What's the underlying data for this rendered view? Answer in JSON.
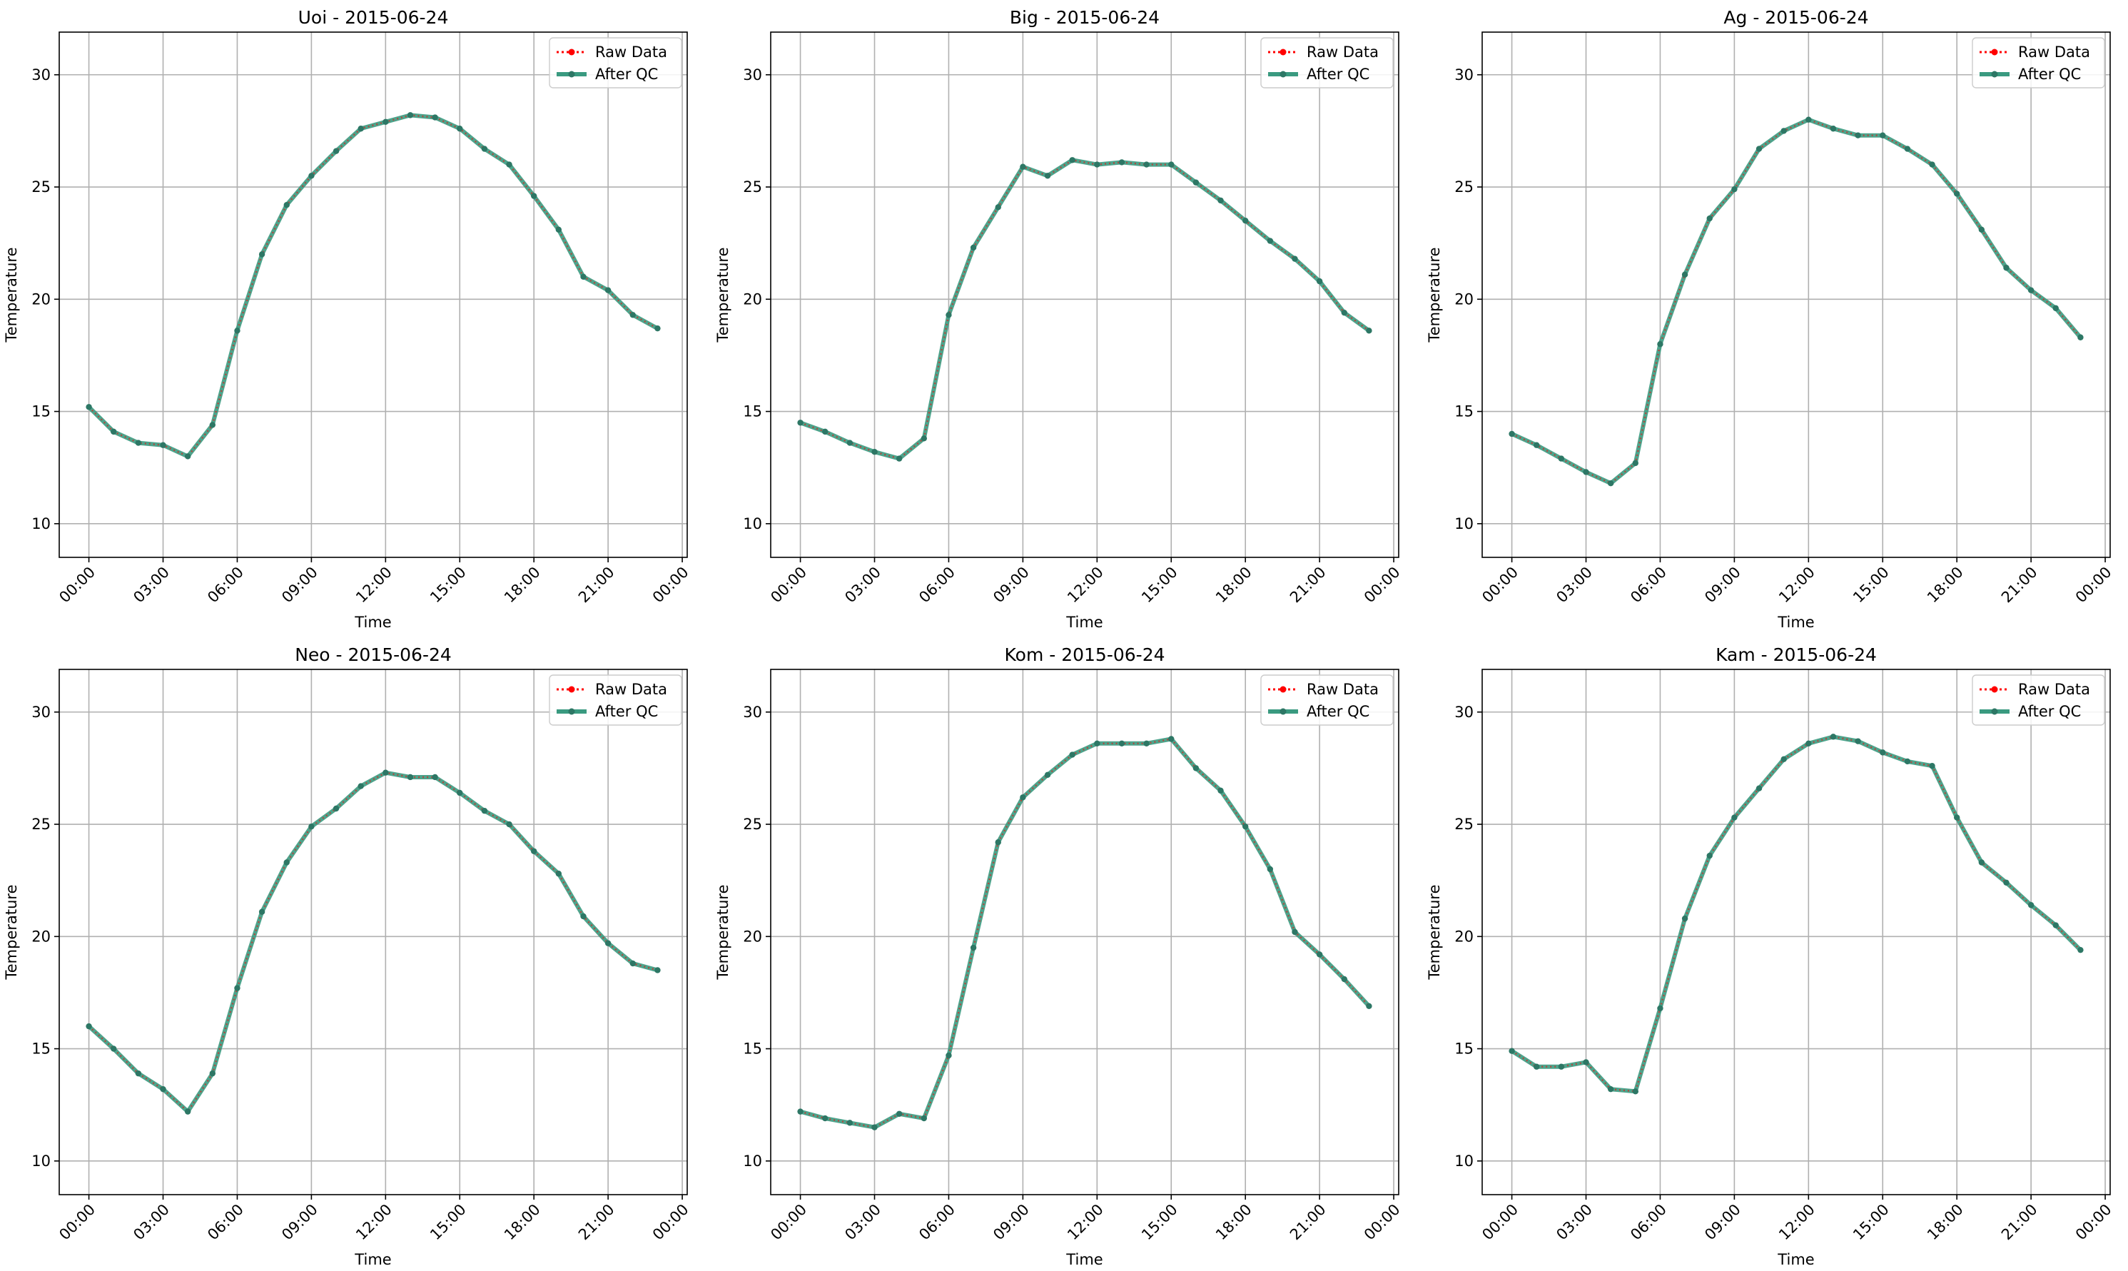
{
  "chart_data": [
    {
      "type": "line",
      "title": "Uoi - 2015-06-24",
      "xlabel": "Time",
      "ylabel": "Temperature",
      "ylim": [
        8.5,
        31.9
      ],
      "yticks": [
        10,
        15,
        20,
        25,
        30
      ],
      "xticks": [
        "00:00",
        "03:00",
        "06:00",
        "09:00",
        "12:00",
        "15:00",
        "18:00",
        "21:00",
        "00:00"
      ],
      "x": [
        "00:00",
        "01:00",
        "02:00",
        "03:00",
        "04:00",
        "05:00",
        "06:00",
        "07:00",
        "08:00",
        "09:00",
        "10:00",
        "11:00",
        "12:00",
        "13:00",
        "14:00",
        "15:00",
        "16:00",
        "17:00",
        "18:00",
        "19:00",
        "20:00",
        "21:00",
        "22:00",
        "23:00"
      ],
      "grid": true,
      "legend": "top-right",
      "series": [
        {
          "name": "Raw Data",
          "values": [
            15.2,
            14.1,
            13.6,
            13.5,
            13.0,
            14.4,
            18.6,
            22.0,
            24.2,
            25.5,
            26.6,
            27.6,
            27.9,
            28.2,
            28.1,
            27.6,
            26.7,
            26.0,
            24.6,
            23.1,
            21.0,
            20.4,
            19.3,
            18.7
          ]
        },
        {
          "name": "After QC",
          "values": [
            15.2,
            14.1,
            13.6,
            13.5,
            13.0,
            14.4,
            18.6,
            22.0,
            24.2,
            25.5,
            26.6,
            27.6,
            27.9,
            28.2,
            28.1,
            27.6,
            26.7,
            26.0,
            24.6,
            23.1,
            21.0,
            20.4,
            19.3,
            18.7
          ]
        }
      ]
    },
    {
      "type": "line",
      "title": "Big - 2015-06-24",
      "xlabel": "Time",
      "ylabel": "Temperature",
      "ylim": [
        8.5,
        31.9
      ],
      "yticks": [
        10,
        15,
        20,
        25,
        30
      ],
      "xticks": [
        "00:00",
        "03:00",
        "06:00",
        "09:00",
        "12:00",
        "15:00",
        "18:00",
        "21:00",
        "00:00"
      ],
      "x": [
        "00:00",
        "01:00",
        "02:00",
        "03:00",
        "04:00",
        "05:00",
        "06:00",
        "07:00",
        "08:00",
        "09:00",
        "10:00",
        "11:00",
        "12:00",
        "13:00",
        "14:00",
        "15:00",
        "16:00",
        "17:00",
        "18:00",
        "19:00",
        "20:00",
        "21:00",
        "22:00",
        "23:00"
      ],
      "grid": true,
      "legend": "top-right",
      "series": [
        {
          "name": "Raw Data",
          "values": [
            14.5,
            14.1,
            13.6,
            13.2,
            12.9,
            13.8,
            19.3,
            22.3,
            24.1,
            25.9,
            25.5,
            26.2,
            26.0,
            26.1,
            26.0,
            26.0,
            25.2,
            24.4,
            23.5,
            22.6,
            21.8,
            20.8,
            19.4,
            18.6
          ]
        },
        {
          "name": "After QC",
          "values": [
            14.5,
            14.1,
            13.6,
            13.2,
            12.9,
            13.8,
            19.3,
            22.3,
            24.1,
            25.9,
            25.5,
            26.2,
            26.0,
            26.1,
            26.0,
            26.0,
            25.2,
            24.4,
            23.5,
            22.6,
            21.8,
            20.8,
            19.4,
            18.6
          ]
        }
      ]
    },
    {
      "type": "line",
      "title": "Ag - 2015-06-24",
      "xlabel": "Time",
      "ylabel": "Temperature",
      "ylim": [
        8.5,
        31.9
      ],
      "yticks": [
        10,
        15,
        20,
        25,
        30
      ],
      "xticks": [
        "00:00",
        "03:00",
        "06:00",
        "09:00",
        "12:00",
        "15:00",
        "18:00",
        "21:00",
        "00:00"
      ],
      "x": [
        "00:00",
        "01:00",
        "02:00",
        "03:00",
        "04:00",
        "05:00",
        "06:00",
        "07:00",
        "08:00",
        "09:00",
        "10:00",
        "11:00",
        "12:00",
        "13:00",
        "14:00",
        "15:00",
        "16:00",
        "17:00",
        "18:00",
        "19:00",
        "20:00",
        "21:00",
        "22:00",
        "23:00"
      ],
      "grid": true,
      "legend": "top-right",
      "series": [
        {
          "name": "Raw Data",
          "values": [
            14.0,
            13.5,
            12.9,
            12.3,
            11.8,
            12.7,
            18.0,
            21.1,
            23.6,
            24.9,
            26.7,
            27.5,
            28.0,
            27.6,
            27.3,
            27.3,
            26.7,
            26.0,
            24.7,
            23.1,
            21.4,
            20.4,
            19.6,
            18.3
          ]
        },
        {
          "name": "After QC",
          "values": [
            14.0,
            13.5,
            12.9,
            12.3,
            11.8,
            12.7,
            18.0,
            21.1,
            23.6,
            24.9,
            26.7,
            27.5,
            28.0,
            27.6,
            27.3,
            27.3,
            26.7,
            26.0,
            24.7,
            23.1,
            21.4,
            20.4,
            19.6,
            18.3
          ]
        }
      ]
    },
    {
      "type": "line",
      "title": "Neo - 2015-06-24",
      "xlabel": "Time",
      "ylabel": "Temperature",
      "ylim": [
        8.5,
        31.9
      ],
      "yticks": [
        10,
        15,
        20,
        25,
        30
      ],
      "xticks": [
        "00:00",
        "03:00",
        "06:00",
        "09:00",
        "12:00",
        "15:00",
        "18:00",
        "21:00",
        "00:00"
      ],
      "x": [
        "00:00",
        "01:00",
        "02:00",
        "03:00",
        "04:00",
        "05:00",
        "06:00",
        "07:00",
        "08:00",
        "09:00",
        "10:00",
        "11:00",
        "12:00",
        "13:00",
        "14:00",
        "15:00",
        "16:00",
        "17:00",
        "18:00",
        "19:00",
        "20:00",
        "21:00",
        "22:00",
        "23:00"
      ],
      "grid": true,
      "legend": "top-right",
      "series": [
        {
          "name": "Raw Data",
          "values": [
            16.0,
            15.0,
            13.9,
            13.2,
            12.2,
            13.9,
            17.7,
            21.1,
            23.3,
            24.9,
            25.7,
            26.7,
            27.3,
            27.1,
            27.1,
            26.4,
            25.6,
            25.0,
            23.8,
            22.8,
            20.9,
            19.7,
            18.8,
            18.5
          ]
        },
        {
          "name": "After QC",
          "values": [
            16.0,
            15.0,
            13.9,
            13.2,
            12.2,
            13.9,
            17.7,
            21.1,
            23.3,
            24.9,
            25.7,
            26.7,
            27.3,
            27.1,
            27.1,
            26.4,
            25.6,
            25.0,
            23.8,
            22.8,
            20.9,
            19.7,
            18.8,
            18.5
          ]
        }
      ]
    },
    {
      "type": "line",
      "title": "Kom - 2015-06-24",
      "xlabel": "Time",
      "ylabel": "Temperature",
      "ylim": [
        8.5,
        31.9
      ],
      "yticks": [
        10,
        15,
        20,
        25,
        30
      ],
      "xticks": [
        "00:00",
        "03:00",
        "06:00",
        "09:00",
        "12:00",
        "15:00",
        "18:00",
        "21:00",
        "00:00"
      ],
      "x": [
        "00:00",
        "01:00",
        "02:00",
        "03:00",
        "04:00",
        "05:00",
        "06:00",
        "07:00",
        "08:00",
        "09:00",
        "10:00",
        "11:00",
        "12:00",
        "13:00",
        "14:00",
        "15:00",
        "16:00",
        "17:00",
        "18:00",
        "19:00",
        "20:00",
        "21:00",
        "22:00",
        "23:00"
      ],
      "grid": true,
      "legend": "top-right",
      "series": [
        {
          "name": "Raw Data",
          "values": [
            12.2,
            11.9,
            11.7,
            11.5,
            12.1,
            11.9,
            14.7,
            19.5,
            24.2,
            26.2,
            27.2,
            28.1,
            28.6,
            28.6,
            28.6,
            28.8,
            27.5,
            26.5,
            24.9,
            23.0,
            20.2,
            19.2,
            18.1,
            16.9
          ]
        },
        {
          "name": "After QC",
          "values": [
            12.2,
            11.9,
            11.7,
            11.5,
            12.1,
            11.9,
            14.7,
            19.5,
            24.2,
            26.2,
            27.2,
            28.1,
            28.6,
            28.6,
            28.6,
            28.8,
            27.5,
            26.5,
            24.9,
            23.0,
            20.2,
            19.2,
            18.1,
            16.9
          ]
        }
      ]
    },
    {
      "type": "line",
      "title": "Kam - 2015-06-24",
      "xlabel": "Time",
      "ylabel": "Temperature",
      "ylim": [
        8.5,
        31.9
      ],
      "yticks": [
        10,
        15,
        20,
        25,
        30
      ],
      "xticks": [
        "00:00",
        "03:00",
        "06:00",
        "09:00",
        "12:00",
        "15:00",
        "18:00",
        "21:00",
        "00:00"
      ],
      "x": [
        "00:00",
        "01:00",
        "02:00",
        "03:00",
        "04:00",
        "05:00",
        "06:00",
        "07:00",
        "08:00",
        "09:00",
        "10:00",
        "11:00",
        "12:00",
        "13:00",
        "14:00",
        "15:00",
        "16:00",
        "17:00",
        "18:00",
        "19:00",
        "20:00",
        "21:00",
        "22:00",
        "23:00"
      ],
      "grid": true,
      "legend": "top-right",
      "series": [
        {
          "name": "Raw Data",
          "values": [
            14.9,
            14.2,
            14.2,
            14.4,
            13.2,
            13.1,
            16.8,
            20.8,
            23.6,
            25.3,
            26.6,
            27.9,
            28.6,
            28.9,
            28.7,
            28.2,
            27.8,
            27.6,
            25.3,
            23.3,
            22.4,
            21.4,
            20.5,
            19.4
          ]
        },
        {
          "name": "After QC",
          "values": [
            14.9,
            14.2,
            14.2,
            14.4,
            13.2,
            13.1,
            16.8,
            20.8,
            23.6,
            25.3,
            26.6,
            27.9,
            28.6,
            28.9,
            28.7,
            28.2,
            27.8,
            27.6,
            25.3,
            23.3,
            22.4,
            21.4,
            20.5,
            19.4
          ]
        }
      ]
    }
  ],
  "colors": {
    "raw": "#ff0000",
    "qc": "#3a9a80",
    "qc_markers": "#2d7765",
    "grid": "#b0b0b0",
    "axes": "#000000"
  },
  "icons": {
    "raw_legend": "red-dotted-line-with-dot",
    "qc_legend": "teal-solid-line-with-dot"
  }
}
